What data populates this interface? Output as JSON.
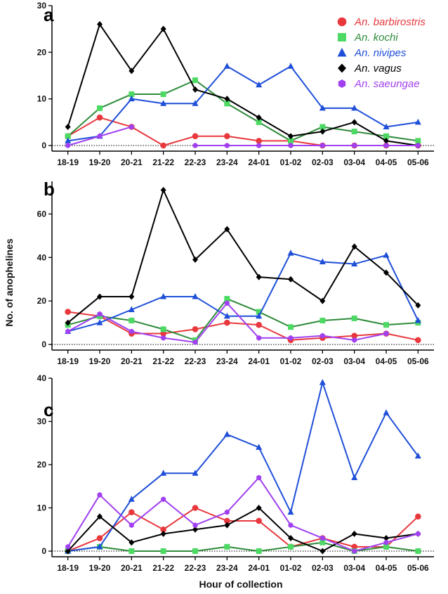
{
  "figure": {
    "ylabel": "No. of anophelines",
    "xlabel": "Hour of collection",
    "legend_position": "top-right of panel a"
  },
  "legend": [
    {
      "name": "An. barbirostris",
      "color": "#e8383d",
      "marker": "circle"
    },
    {
      "name": "An. kochi",
      "color": "#2e8b3a",
      "marker": "square",
      "marker_color": "#4cd964"
    },
    {
      "name": "An. nivipes",
      "color": "#1f4fd8",
      "marker": "triangle"
    },
    {
      "name": "An. vagus",
      "color": "#000000",
      "marker": "diamond"
    },
    {
      "name": "An. saeungae",
      "color": "#a040f0",
      "marker": "hexagon"
    }
  ],
  "chart_data": [
    {
      "panel": "a",
      "type": "line",
      "categories": [
        "18-19",
        "19-20",
        "20-21",
        "21-22",
        "22-23",
        "23-24",
        "24-01",
        "01-02",
        "02-03",
        "03-04",
        "04-05",
        "05-06"
      ],
      "ylim": [
        0,
        30
      ],
      "yticks": [
        0,
        10,
        20,
        30
      ],
      "series": [
        {
          "name": "An. barbirostris",
          "values": [
            2,
            6,
            4,
            0,
            2,
            2,
            1,
            1,
            0,
            0,
            0,
            0
          ]
        },
        {
          "name": "An. kochi",
          "values": [
            2,
            8,
            11,
            11,
            14,
            9,
            5,
            1,
            4,
            3,
            2,
            1
          ]
        },
        {
          "name": "An. nivipes",
          "values": [
            1,
            2,
            10,
            9,
            9,
            17,
            13,
            17,
            8,
            8,
            4,
            5
          ]
        },
        {
          "name": "An. vagus",
          "values": [
            4,
            26,
            16,
            25,
            12,
            10,
            6,
            2,
            3,
            5,
            1,
            0
          ]
        },
        {
          "name": "An. saeungae",
          "values": [
            0,
            2,
            4,
            null,
            0,
            0,
            0,
            0,
            0,
            0,
            0,
            0
          ]
        }
      ]
    },
    {
      "panel": "b",
      "type": "line",
      "categories": [
        "18-19",
        "19-20",
        "20-21",
        "21-22",
        "22-23",
        "23-24",
        "24-01",
        "01-02",
        "02-03",
        "03-04",
        "04-05",
        "05-06"
      ],
      "ylim": [
        0,
        75
      ],
      "yticks": [
        0,
        20,
        40,
        60
      ],
      "series": [
        {
          "name": "An. barbirostris",
          "values": [
            15,
            13,
            5,
            5,
            7,
            10,
            9,
            2,
            3,
            4,
            5,
            2
          ]
        },
        {
          "name": "An. kochi",
          "values": [
            9,
            13,
            11,
            7,
            2,
            21,
            15,
            8,
            11,
            12,
            9,
            10
          ]
        },
        {
          "name": "An. nivipes",
          "values": [
            6,
            10,
            16,
            22,
            22,
            13,
            13,
            42,
            38,
            37,
            41,
            11
          ]
        },
        {
          "name": "An. vagus",
          "values": [
            10,
            22,
            22,
            71,
            39,
            53,
            31,
            30,
            20,
            45,
            33,
            18
          ]
        },
        {
          "name": "An. saeungae",
          "values": [
            6,
            14,
            6,
            3,
            1,
            19,
            3,
            3,
            4,
            2,
            5,
            null
          ]
        }
      ]
    },
    {
      "panel": "c",
      "type": "line",
      "categories": [
        "18-19",
        "19-20",
        "20-21",
        "21-22",
        "22-23",
        "23-24",
        "24-01",
        "01-02",
        "02-03",
        "03-04",
        "04-05",
        "05-06"
      ],
      "ylim": [
        0,
        40
      ],
      "yticks": [
        0,
        10,
        20,
        30,
        40
      ],
      "series": [
        {
          "name": "An. barbirostris",
          "values": [
            0,
            3,
            9,
            5,
            10,
            7,
            7,
            1,
            3,
            1,
            1,
            8
          ]
        },
        {
          "name": "An. kochi",
          "values": [
            0,
            1,
            0,
            0,
            0,
            1,
            0,
            1,
            2,
            0,
            1,
            0
          ]
        },
        {
          "name": "An. nivipes",
          "values": [
            0,
            1,
            12,
            18,
            18,
            27,
            24,
            9,
            39,
            17,
            32,
            22
          ]
        },
        {
          "name": "An. vagus",
          "values": [
            0,
            8,
            2,
            4,
            5,
            6,
            10,
            3,
            0,
            4,
            3,
            4
          ]
        },
        {
          "name": "An. saeungae",
          "values": [
            1,
            13,
            6,
            12,
            6,
            9,
            17,
            6,
            3,
            0,
            2,
            4
          ]
        }
      ]
    }
  ]
}
